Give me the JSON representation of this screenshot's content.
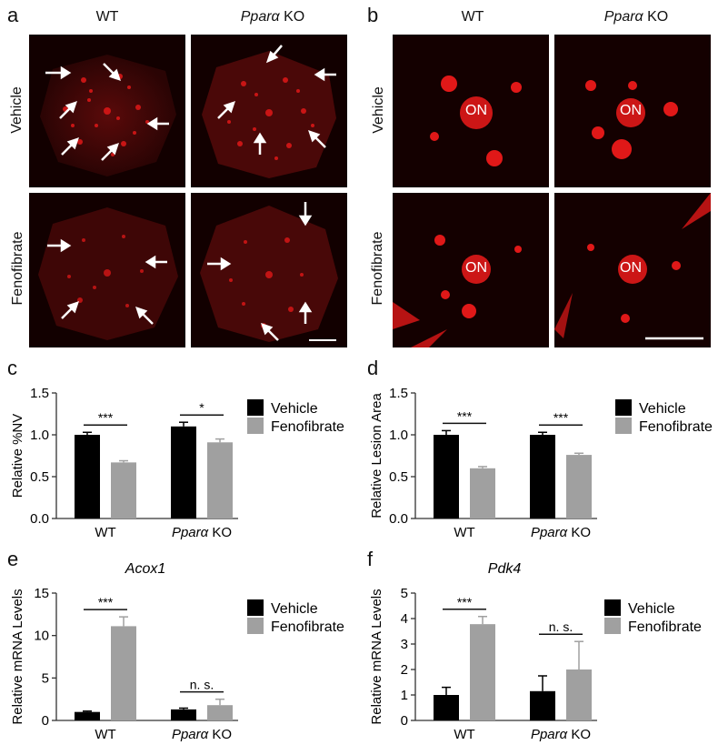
{
  "panels": {
    "a": {
      "letter": "a",
      "col_wt": "WT",
      "col_ko_gene": "Pparα",
      "col_ko_suffix": " KO",
      "row_vehicle": "Vehicle",
      "row_fenofibrate": "Fenofibrate"
    },
    "b": {
      "letter": "b",
      "col_wt": "WT",
      "col_ko_gene": "Pparα",
      "col_ko_suffix": " KO",
      "row_vehicle": "Vehicle",
      "row_fenofibrate": "Fenofibrate",
      "on_label": "ON"
    }
  },
  "colors": {
    "vehicle": "#000000",
    "fenofibrate": "#a0a0a0",
    "tissue_bg": "#120000",
    "stain": "#e01818"
  },
  "chart_data": [
    {
      "id": "c",
      "letter": "c",
      "type": "bar",
      "title": "",
      "ylabel": "Relative %NV",
      "ylim": [
        0,
        1.5
      ],
      "yticks": [
        "0.0",
        "0.5",
        "1.0",
        "1.5"
      ],
      "categories": [
        "WT",
        "Pparα KO"
      ],
      "category_parts": [
        {
          "gene": "",
          "rest": "WT"
        },
        {
          "gene": "Pparα",
          "rest": " KO"
        }
      ],
      "series": [
        {
          "name": "Vehicle",
          "values": [
            1.0,
            1.1
          ],
          "errors": [
            0.03,
            0.05
          ]
        },
        {
          "name": "Fenofibrate",
          "values": [
            0.67,
            0.91
          ],
          "errors": [
            0.02,
            0.04
          ]
        }
      ],
      "significance": [
        "***",
        "*"
      ]
    },
    {
      "id": "d",
      "letter": "d",
      "type": "bar",
      "title": "",
      "ylabel": "Relative Lesion Area",
      "ylim": [
        0,
        1.5
      ],
      "yticks": [
        "0.0",
        "0.5",
        "1.0",
        "1.5"
      ],
      "categories": [
        "WT",
        "Pparα KO"
      ],
      "category_parts": [
        {
          "gene": "",
          "rest": "WT"
        },
        {
          "gene": "Pparα",
          "rest": " KO"
        }
      ],
      "series": [
        {
          "name": "Vehicle",
          "values": [
            1.0,
            1.0
          ],
          "errors": [
            0.05,
            0.03
          ]
        },
        {
          "name": "Fenofibrate",
          "values": [
            0.6,
            0.76
          ],
          "errors": [
            0.02,
            0.02
          ]
        }
      ],
      "significance": [
        "***",
        "***"
      ]
    },
    {
      "id": "e",
      "letter": "e",
      "type": "bar",
      "title": "Acox1",
      "ylabel": "Relative mRNA Levels",
      "ylim": [
        0,
        15
      ],
      "yticks": [
        "0",
        "5",
        "10",
        "15"
      ],
      "categories": [
        "WT",
        "Pparα KO"
      ],
      "category_parts": [
        {
          "gene": "",
          "rest": "WT"
        },
        {
          "gene": "Pparα",
          "rest": " KO"
        }
      ],
      "series": [
        {
          "name": "Vehicle",
          "values": [
            1.0,
            1.3
          ],
          "errors": [
            0.1,
            0.15
          ]
        },
        {
          "name": "Fenofibrate",
          "values": [
            11.1,
            1.8
          ],
          "errors": [
            1.1,
            0.7
          ]
        }
      ],
      "significance": [
        "***",
        "n. s."
      ]
    },
    {
      "id": "f",
      "letter": "f",
      "type": "bar",
      "title": "Pdk4",
      "ylabel": "Relative mRNA Levels",
      "ylim": [
        0,
        5
      ],
      "yticks": [
        "0",
        "1",
        "2",
        "3",
        "4",
        "5"
      ],
      "categories": [
        "WT",
        "Pparα KO"
      ],
      "category_parts": [
        {
          "gene": "",
          "rest": "WT"
        },
        {
          "gene": "Pparα",
          "rest": " KO"
        }
      ],
      "series": [
        {
          "name": "Vehicle",
          "values": [
            1.0,
            1.15
          ],
          "errors": [
            0.3,
            0.6
          ]
        },
        {
          "name": "Fenofibrate",
          "values": [
            3.78,
            2.0
          ],
          "errors": [
            0.3,
            1.1
          ]
        }
      ],
      "significance": [
        "***",
        "n. s."
      ]
    }
  ]
}
